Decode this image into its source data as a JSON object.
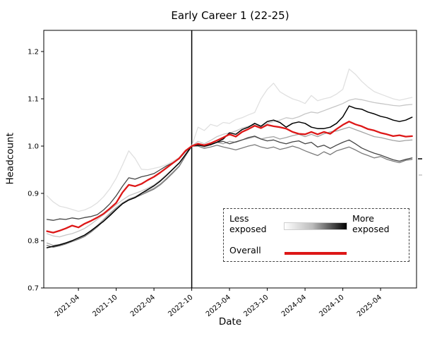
{
  "figure": {
    "title": "Early Career 1 (22-25)"
  },
  "axes": {
    "xlabel": "Date",
    "ylabel": "Headcount",
    "x_tick_labels": [
      "2021-04",
      "2021-10",
      "2022-04",
      "2022-10",
      "2023-04",
      "2023-10",
      "2024-04",
      "2024-10",
      "2025-04"
    ],
    "y_tick_labels": [
      "0.7",
      "0.8",
      "0.9",
      "1.0",
      "1.1",
      "1.2"
    ]
  },
  "legend": {
    "less_label": "Less exposed",
    "more_label": "More exposed",
    "overall_label": "Overall"
  },
  "colors": {
    "overall_red": "#dd1717",
    "event_line": "#000000",
    "gradient_start": "#ffffff",
    "gradient_end": "#000000"
  },
  "chart_data": {
    "type": "line",
    "title": "Early Career 1 (22-25)",
    "xlabel": "Date",
    "ylabel": "Headcount",
    "ylim": [
      0.7,
      1.245
    ],
    "grid": false,
    "legend_position": "lower right",
    "normalization_note_vline_at": "2022-10",
    "yticks": [
      0.7,
      0.8,
      0.9,
      1.0,
      1.1,
      1.2
    ],
    "xticks": [
      "2021-04",
      "2021-10",
      "2022-04",
      "2022-10",
      "2023-04",
      "2023-10",
      "2024-04",
      "2024-10",
      "2025-04"
    ],
    "x": [
      "2020-11",
      "2020-12",
      "2021-01",
      "2021-02",
      "2021-03",
      "2021-04",
      "2021-05",
      "2021-06",
      "2021-07",
      "2021-08",
      "2021-09",
      "2021-10",
      "2021-11",
      "2021-12",
      "2022-01",
      "2022-02",
      "2022-03",
      "2022-04",
      "2022-05",
      "2022-06",
      "2022-07",
      "2022-08",
      "2022-09",
      "2022-10",
      "2022-11",
      "2022-12",
      "2023-01",
      "2023-02",
      "2023-03",
      "2023-04",
      "2023-05",
      "2023-06",
      "2023-07",
      "2023-08",
      "2023-09",
      "2023-10",
      "2023-11",
      "2023-12",
      "2024-01",
      "2024-02",
      "2024-03",
      "2024-04",
      "2024-05",
      "2024-06",
      "2024-07",
      "2024-08",
      "2024-09",
      "2024-10",
      "2024-11",
      "2024-12",
      "2025-01",
      "2025-02",
      "2025-03",
      "2025-04",
      "2025-05",
      "2025-06",
      "2025-07",
      "2025-08",
      "2025-09"
    ],
    "series": [
      {
        "name": "exposure-q1-least-exposed",
        "color": "#e0e0e0",
        "width": 1.3,
        "values": [
          0.895,
          0.882,
          0.873,
          0.87,
          0.866,
          0.862,
          0.865,
          0.871,
          0.88,
          0.893,
          0.91,
          0.932,
          0.96,
          0.99,
          0.974,
          0.951,
          0.95,
          0.953,
          0.956,
          0.961,
          0.968,
          0.976,
          0.988,
          1.0,
          1.04,
          1.033,
          1.046,
          1.042,
          1.05,
          1.048,
          1.056,
          1.06,
          1.066,
          1.071,
          1.1,
          1.12,
          1.133,
          1.115,
          1.107,
          1.1,
          1.096,
          1.09,
          1.107,
          1.096,
          1.1,
          1.103,
          1.11,
          1.12,
          1.163,
          1.152,
          1.137,
          1.125,
          1.115,
          1.11,
          1.105,
          1.1,
          1.097,
          1.1,
          1.103
        ]
      },
      {
        "name": "exposure-q2",
        "color": "#c6c6c6",
        "width": 1.3,
        "values": [
          0.815,
          0.81,
          0.808,
          0.812,
          0.815,
          0.82,
          0.826,
          0.835,
          0.845,
          0.855,
          0.865,
          0.876,
          0.886,
          0.895,
          0.9,
          0.905,
          0.911,
          0.918,
          0.928,
          0.94,
          0.952,
          0.965,
          0.982,
          1.0,
          1.01,
          1.005,
          1.012,
          1.02,
          1.025,
          1.028,
          1.032,
          1.038,
          1.042,
          1.045,
          1.04,
          1.048,
          1.052,
          1.055,
          1.06,
          1.058,
          1.062,
          1.068,
          1.072,
          1.07,
          1.075,
          1.08,
          1.085,
          1.09,
          1.097,
          1.1,
          1.098,
          1.095,
          1.092,
          1.09,
          1.088,
          1.086,
          1.085,
          1.087,
          1.088
        ]
      },
      {
        "name": "exposure-q3",
        "color": "#a3a3a3",
        "width": 1.3,
        "values": [
          0.795,
          0.79,
          0.792,
          0.796,
          0.8,
          0.805,
          0.811,
          0.82,
          0.832,
          0.845,
          0.858,
          0.87,
          0.88,
          0.888,
          0.893,
          0.9,
          0.905,
          0.911,
          0.92,
          0.932,
          0.945,
          0.958,
          0.98,
          1.0,
          1.003,
          0.998,
          1.003,
          1.008,
          1.005,
          1.01,
          1.008,
          1.013,
          1.016,
          1.02,
          1.015,
          1.018,
          1.02,
          1.015,
          1.018,
          1.022,
          1.025,
          1.02,
          1.025,
          1.02,
          1.026,
          1.03,
          1.032,
          1.036,
          1.04,
          1.035,
          1.03,
          1.025,
          1.02,
          1.018,
          1.015,
          1.012,
          1.01,
          1.012,
          1.013
        ]
      },
      {
        "name": "exposure-q4",
        "color": "#7a7a7a",
        "width": 1.3,
        "values": [
          0.79,
          0.786,
          0.789,
          0.793,
          0.798,
          0.803,
          0.809,
          0.818,
          0.829,
          0.842,
          0.855,
          0.867,
          0.878,
          0.886,
          0.891,
          0.897,
          0.903,
          0.909,
          0.918,
          0.93,
          0.943,
          0.957,
          0.979,
          1.0,
          1.0,
          0.995,
          0.998,
          1.002,
          0.998,
          0.995,
          0.992,
          0.996,
          1.0,
          1.003,
          0.998,
          0.995,
          0.998,
          0.993,
          0.996,
          1.0,
          0.996,
          0.99,
          0.985,
          0.98,
          0.988,
          0.982,
          0.99,
          0.994,
          0.998,
          0.992,
          0.985,
          0.98,
          0.975,
          0.978,
          0.972,
          0.968,
          0.965,
          0.97,
          0.972
        ]
      },
      {
        "name": "exposure-q5",
        "color": "#454545",
        "width": 1.3,
        "values": [
          0.845,
          0.843,
          0.846,
          0.845,
          0.848,
          0.846,
          0.849,
          0.851,
          0.855,
          0.865,
          0.878,
          0.895,
          0.915,
          0.933,
          0.93,
          0.935,
          0.938,
          0.942,
          0.95,
          0.958,
          0.965,
          0.973,
          0.988,
          1.0,
          1.005,
          1.0,
          1.003,
          1.008,
          1.01,
          1.005,
          1.009,
          1.013,
          1.018,
          1.021,
          1.015,
          1.011,
          1.013,
          1.008,
          1.005,
          1.009,
          1.011,
          1.005,
          1.008,
          0.998,
          1.002,
          0.995,
          1.002,
          1.008,
          1.013,
          1.005,
          0.996,
          0.99,
          0.985,
          0.981,
          0.976,
          0.971,
          0.968,
          0.972,
          0.975
        ]
      },
      {
        "name": "exposure-q6-most-exposed",
        "color": "#000000",
        "width": 1.5,
        "values": [
          0.785,
          0.788,
          0.791,
          0.795,
          0.8,
          0.806,
          0.812,
          0.821,
          0.831,
          0.841,
          0.853,
          0.866,
          0.878,
          0.886,
          0.891,
          0.9,
          0.908,
          0.916,
          0.926,
          0.938,
          0.951,
          0.964,
          0.982,
          1.0,
          1.002,
          1.0,
          1.003,
          1.008,
          1.015,
          1.028,
          1.025,
          1.035,
          1.04,
          1.048,
          1.042,
          1.052,
          1.055,
          1.05,
          1.04,
          1.048,
          1.051,
          1.048,
          1.04,
          1.037,
          1.037,
          1.04,
          1.048,
          1.062,
          1.085,
          1.08,
          1.078,
          1.072,
          1.068,
          1.063,
          1.06,
          1.055,
          1.052,
          1.055,
          1.061
        ]
      },
      {
        "name": "Overall",
        "color": "#dd1717",
        "width": 2.3,
        "values": [
          0.82,
          0.817,
          0.821,
          0.826,
          0.832,
          0.828,
          0.836,
          0.842,
          0.849,
          0.857,
          0.868,
          0.88,
          0.902,
          0.918,
          0.915,
          0.92,
          0.928,
          0.935,
          0.944,
          0.954,
          0.964,
          0.974,
          0.99,
          1.0,
          1.005,
          1.002,
          1.006,
          1.012,
          1.018,
          1.025,
          1.02,
          1.03,
          1.036,
          1.043,
          1.038,
          1.045,
          1.042,
          1.04,
          1.037,
          1.03,
          1.026,
          1.025,
          1.03,
          1.025,
          1.03,
          1.026,
          1.036,
          1.045,
          1.052,
          1.046,
          1.042,
          1.036,
          1.033,
          1.028,
          1.025,
          1.021,
          1.023,
          1.02,
          1.021
        ]
      }
    ]
  }
}
